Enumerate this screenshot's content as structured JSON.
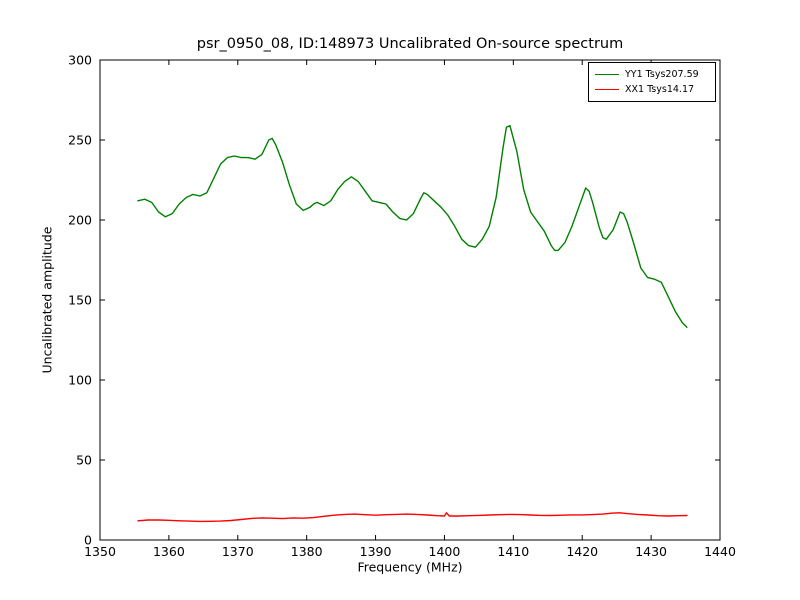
{
  "chart_data": {
    "type": "line",
    "title": "psr_0950_08, ID:148973 Uncalibrated On-source spectrum",
    "xlabel": "Frequency (MHz)",
    "ylabel": "Uncalibrated amplitude",
    "xlim": [
      1350,
      1440
    ],
    "ylim": [
      0,
      300
    ],
    "xticks": [
      1350,
      1360,
      1370,
      1380,
      1390,
      1400,
      1410,
      1420,
      1430,
      1440
    ],
    "yticks": [
      0,
      50,
      100,
      150,
      200,
      250,
      300
    ],
    "grid": false,
    "legend_position": "upper right",
    "background_color": "#ffffff",
    "axis_color": "#000000",
    "series": [
      {
        "name": "YY1",
        "label": "YY1 Tsys207.59",
        "color": "#008000",
        "points": [
          [
            1355.5,
            212
          ],
          [
            1356.5,
            213
          ],
          [
            1357.5,
            211
          ],
          [
            1358.5,
            205
          ],
          [
            1359.5,
            202
          ],
          [
            1360.5,
            204
          ],
          [
            1361.5,
            210
          ],
          [
            1362.5,
            214
          ],
          [
            1363.5,
            216
          ],
          [
            1364.5,
            215
          ],
          [
            1365.5,
            217
          ],
          [
            1366.5,
            226
          ],
          [
            1367.5,
            235
          ],
          [
            1368.5,
            239
          ],
          [
            1369.5,
            240
          ],
          [
            1370.5,
            239
          ],
          [
            1371.5,
            239
          ],
          [
            1372.5,
            238
          ],
          [
            1373.5,
            241
          ],
          [
            1374.5,
            250
          ],
          [
            1375.0,
            251
          ],
          [
            1375.5,
            247
          ],
          [
            1376.5,
            236
          ],
          [
            1377.5,
            222
          ],
          [
            1378.5,
            210
          ],
          [
            1379.5,
            206
          ],
          [
            1380.5,
            208
          ],
          [
            1381.0,
            210
          ],
          [
            1381.5,
            211
          ],
          [
            1382.5,
            209
          ],
          [
            1383.5,
            212
          ],
          [
            1384.5,
            219
          ],
          [
            1385.5,
            224
          ],
          [
            1386.5,
            227
          ],
          [
            1387.5,
            224
          ],
          [
            1388.5,
            218
          ],
          [
            1389.5,
            212
          ],
          [
            1390.5,
            211
          ],
          [
            1391.5,
            210
          ],
          [
            1392.5,
            205
          ],
          [
            1393.5,
            201
          ],
          [
            1394.5,
            200
          ],
          [
            1395.5,
            204
          ],
          [
            1396.5,
            213
          ],
          [
            1397.0,
            217
          ],
          [
            1397.5,
            216
          ],
          [
            1398.5,
            212
          ],
          [
            1399.5,
            208
          ],
          [
            1400.5,
            203
          ],
          [
            1401.5,
            196
          ],
          [
            1402.5,
            188
          ],
          [
            1403.5,
            184
          ],
          [
            1404.5,
            183
          ],
          [
            1405.5,
            188
          ],
          [
            1406.5,
            196
          ],
          [
            1407.5,
            214
          ],
          [
            1408.5,
            245
          ],
          [
            1409.0,
            258
          ],
          [
            1409.5,
            259
          ],
          [
            1410.5,
            243
          ],
          [
            1411.5,
            219
          ],
          [
            1412.5,
            205
          ],
          [
            1413.5,
            199
          ],
          [
            1414.5,
            193
          ],
          [
            1415.5,
            184
          ],
          [
            1416.0,
            181
          ],
          [
            1416.5,
            181
          ],
          [
            1417.5,
            186
          ],
          [
            1418.5,
            196
          ],
          [
            1419.5,
            208
          ],
          [
            1420.5,
            220
          ],
          [
            1421.0,
            218
          ],
          [
            1421.5,
            211
          ],
          [
            1422.5,
            195
          ],
          [
            1423.0,
            189
          ],
          [
            1423.5,
            188
          ],
          [
            1424.5,
            194
          ],
          [
            1425.5,
            205
          ],
          [
            1426.0,
            204
          ],
          [
            1426.5,
            199
          ],
          [
            1427.5,
            185
          ],
          [
            1428.5,
            170
          ],
          [
            1429.5,
            164
          ],
          [
            1430.5,
            163
          ],
          [
            1431.5,
            161
          ],
          [
            1432.5,
            152
          ],
          [
            1433.5,
            143
          ],
          [
            1434.5,
            136
          ],
          [
            1435.2,
            133
          ]
        ]
      },
      {
        "name": "XX1",
        "label": "XX1 Tsys14.17",
        "color": "#ff0000",
        "points": [
          [
            1355.5,
            12
          ],
          [
            1357.0,
            12.5
          ],
          [
            1358.5,
            12.5
          ],
          [
            1360.0,
            12.3
          ],
          [
            1361.5,
            12
          ],
          [
            1363.0,
            11.8
          ],
          [
            1364.5,
            11.6
          ],
          [
            1366.0,
            11.7
          ],
          [
            1367.5,
            11.8
          ],
          [
            1369.0,
            12.2
          ],
          [
            1370.5,
            12.8
          ],
          [
            1372.0,
            13.5
          ],
          [
            1373.5,
            13.8
          ],
          [
            1375.0,
            13.6
          ],
          [
            1376.5,
            13.4
          ],
          [
            1378.0,
            13.8
          ],
          [
            1379.5,
            13.6
          ],
          [
            1381.0,
            14
          ],
          [
            1382.5,
            14.8
          ],
          [
            1384.0,
            15.5
          ],
          [
            1385.5,
            16
          ],
          [
            1387.0,
            16.2
          ],
          [
            1388.5,
            15.8
          ],
          [
            1390.0,
            15.5
          ],
          [
            1391.5,
            15.8
          ],
          [
            1393.0,
            16
          ],
          [
            1394.5,
            16.2
          ],
          [
            1396.0,
            16
          ],
          [
            1397.5,
            15.6
          ],
          [
            1399.0,
            15.2
          ],
          [
            1400.0,
            15
          ],
          [
            1400.3,
            17
          ],
          [
            1400.7,
            15
          ],
          [
            1402.0,
            15
          ],
          [
            1403.5,
            15.2
          ],
          [
            1405.0,
            15.4
          ],
          [
            1406.5,
            15.6
          ],
          [
            1408.0,
            15.8
          ],
          [
            1409.5,
            16
          ],
          [
            1411.0,
            15.9
          ],
          [
            1412.5,
            15.6
          ],
          [
            1414.0,
            15.4
          ],
          [
            1415.5,
            15.3
          ],
          [
            1417.0,
            15.5
          ],
          [
            1418.5,
            15.7
          ],
          [
            1420.0,
            15.7
          ],
          [
            1421.5,
            15.9
          ],
          [
            1423.0,
            16.2
          ],
          [
            1424.5,
            16.8
          ],
          [
            1425.5,
            17
          ],
          [
            1426.5,
            16.5
          ],
          [
            1428.0,
            16
          ],
          [
            1429.5,
            15.6
          ],
          [
            1431.0,
            15.2
          ],
          [
            1432.5,
            15
          ],
          [
            1434.0,
            15.2
          ],
          [
            1435.2,
            15.3
          ]
        ]
      }
    ]
  }
}
